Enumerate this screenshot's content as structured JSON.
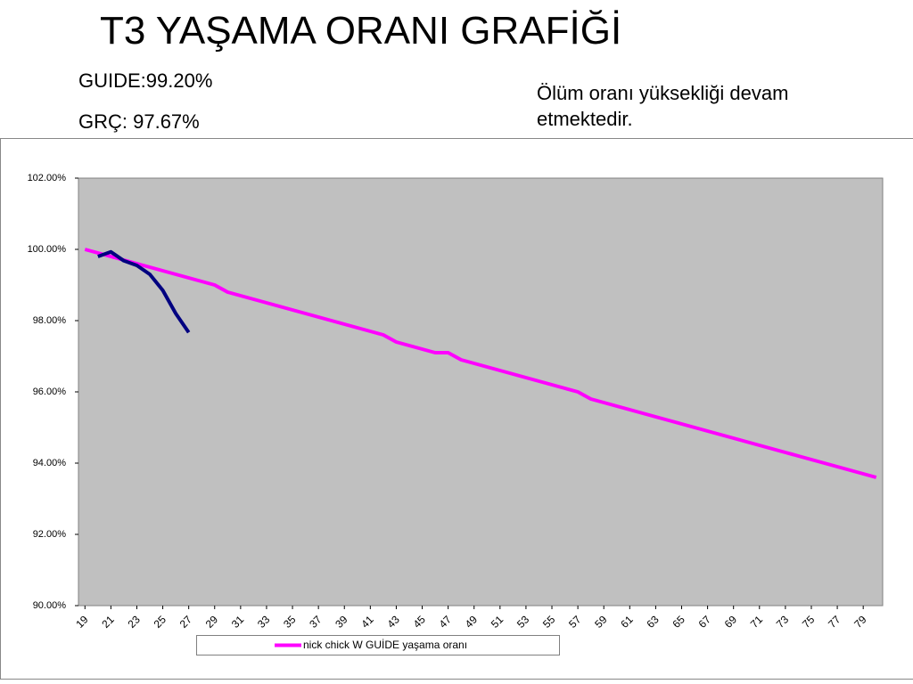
{
  "header": {
    "title": "T3 YAŞAMA ORANI GRAFİĞİ",
    "notes": [
      "GUIDE:99.20%",
      "GRÇ: 97.67%"
    ],
    "comment": "Ölüm oranı yüksekliği devam etmektedir."
  },
  "chart_data": {
    "type": "line",
    "x": [
      19,
      20,
      21,
      22,
      23,
      24,
      25,
      26,
      27,
      28,
      29,
      30,
      31,
      32,
      33,
      34,
      35,
      36,
      37,
      38,
      39,
      40,
      41,
      42,
      43,
      44,
      45,
      46,
      47,
      48,
      49,
      50,
      51,
      52,
      53,
      54,
      55,
      56,
      57,
      58,
      59,
      60,
      61,
      62,
      63,
      64,
      65,
      66,
      67,
      68,
      69,
      70,
      71,
      72,
      73,
      74,
      75,
      76,
      77,
      78,
      79,
      80
    ],
    "xlim": [
      18.5,
      80.5
    ],
    "xticks": [
      19,
      21,
      23,
      25,
      27,
      29,
      31,
      33,
      35,
      37,
      39,
      41,
      43,
      45,
      47,
      49,
      51,
      53,
      55,
      57,
      59,
      61,
      63,
      65,
      67,
      69,
      71,
      73,
      75,
      77,
      79
    ],
    "ylim": [
      90,
      102
    ],
    "yticks": [
      {
        "value": 90,
        "label": "90.00%"
      },
      {
        "value": 92,
        "label": "92.00%"
      },
      {
        "value": 94,
        "label": "94.00%"
      },
      {
        "value": 96,
        "label": "96.00%"
      },
      {
        "value": 98,
        "label": "98.00%"
      },
      {
        "value": 100,
        "label": "100.00%"
      },
      {
        "value": 102,
        "label": "102.00%"
      }
    ],
    "background": "#c0c0c0",
    "series": [
      {
        "name": "nick chick W GUİDE yaşama oranı",
        "color": "#ff00ff",
        "values": [
          100.0,
          99.9,
          99.8,
          99.7,
          99.6,
          99.5,
          99.4,
          99.3,
          99.2,
          99.1,
          99.0,
          98.8,
          98.7,
          98.6,
          98.5,
          98.4,
          98.3,
          98.2,
          98.1,
          98.0,
          97.9,
          97.8,
          97.7,
          97.6,
          97.4,
          97.3,
          97.2,
          97.1,
          97.1,
          96.9,
          96.8,
          96.7,
          96.6,
          96.5,
          96.4,
          96.3,
          96.2,
          96.1,
          96.0,
          95.8,
          95.7,
          95.6,
          95.5,
          95.4,
          95.3,
          95.2,
          95.1,
          95.0,
          94.9,
          94.8,
          94.7,
          94.6,
          94.5,
          94.4,
          94.3,
          94.2,
          94.1,
          94.0,
          93.9,
          93.8,
          93.7,
          93.6
        ]
      },
      {
        "color": "#000080",
        "values": [
          null,
          99.8,
          99.93,
          99.68,
          99.55,
          99.3,
          98.85,
          98.2,
          97.67,
          null,
          null,
          null,
          null,
          null,
          null,
          null,
          null,
          null,
          null,
          null,
          null,
          null,
          null,
          null,
          null,
          null,
          null,
          null,
          null,
          null,
          null,
          null,
          null,
          null,
          null,
          null,
          null,
          null,
          null,
          null,
          null,
          null,
          null,
          null,
          null,
          null,
          null,
          null,
          null,
          null,
          null,
          null,
          null,
          null,
          null,
          null,
          null,
          null,
          null,
          null,
          null,
          null
        ]
      }
    ]
  }
}
